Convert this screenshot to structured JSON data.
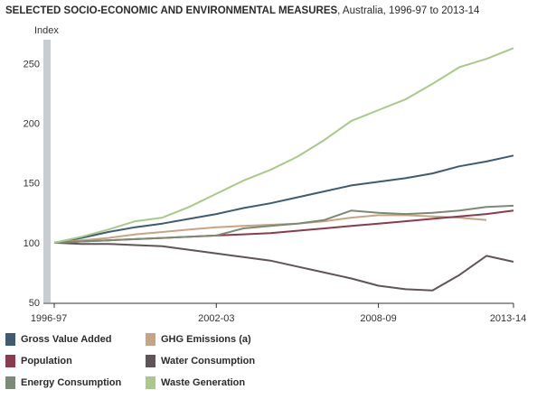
{
  "title": {
    "main": "SELECTED SOCIO-ECONOMIC AND ENVIRONMENTAL MEASURES",
    "sub": ", Australia, 1996-97 to 2013-14"
  },
  "chart_data": {
    "type": "line",
    "ylabel": "Index",
    "ylim": [
      50,
      270
    ],
    "yticks": [
      50,
      100,
      150,
      200,
      250
    ],
    "x": [
      "1996-97",
      "1997-98",
      "1998-99",
      "1999-00",
      "2000-01",
      "2001-02",
      "2002-03",
      "2003-04",
      "2004-05",
      "2005-06",
      "2006-07",
      "2007-08",
      "2008-09",
      "2009-10",
      "2010-11",
      "2011-12",
      "2012-13",
      "2013-14"
    ],
    "xtick_labels": [
      "1996-97",
      "2002-03",
      "2008-09",
      "2013-14"
    ],
    "grid": false,
    "legend": "bottom",
    "series": [
      {
        "name": "Gross Value Added",
        "color": "#3e5b72",
        "values": [
          100,
          104,
          109,
          113,
          116,
          120,
          124,
          129,
          133,
          138,
          143,
          148,
          151,
          154,
          158,
          164,
          168,
          173
        ]
      },
      {
        "name": "GHG Emissions (a)",
        "color": "#c6a484",
        "values": [
          100,
          102,
          104,
          107,
          109,
          111,
          113,
          114,
          115,
          116,
          118,
          121,
          123,
          123,
          122,
          121,
          119,
          null
        ]
      },
      {
        "name": "Population",
        "color": "#8c3a4e",
        "values": [
          100,
          101,
          102,
          103,
          104,
          105,
          106,
          107,
          108,
          110,
          112,
          114,
          116,
          118,
          120,
          122,
          124,
          127
        ]
      },
      {
        "name": "Water Consumption",
        "color": "#5f5459",
        "values": [
          100,
          99,
          99,
          98,
          97,
          94,
          91,
          88,
          85,
          80,
          75,
          70,
          64,
          61,
          60,
          73,
          89,
          84
        ]
      },
      {
        "name": "Energy Consumption",
        "color": "#7a8a74",
        "values": [
          100,
          101,
          102,
          103,
          104,
          105,
          106,
          112,
          114,
          116,
          119,
          127,
          125,
          124,
          125,
          127,
          130,
          131
        ]
      },
      {
        "name": "Waste Generation",
        "color": "#a9c98a",
        "values": [
          100,
          105,
          111,
          118,
          121,
          130,
          141,
          152,
          161,
          172,
          186,
          202,
          211,
          220,
          233,
          247,
          254,
          263
        ]
      }
    ]
  }
}
